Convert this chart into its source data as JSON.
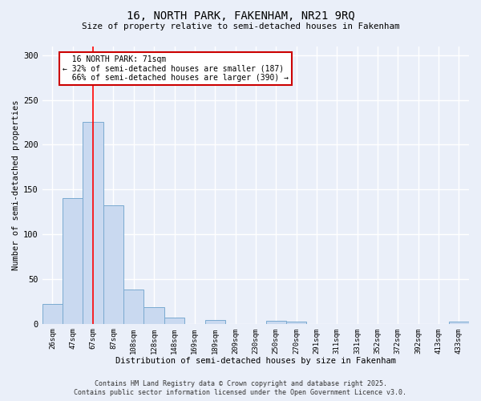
{
  "title": "16, NORTH PARK, FAKENHAM, NR21 9RQ",
  "subtitle": "Size of property relative to semi-detached houses in Fakenham",
  "xlabel": "Distribution of semi-detached houses by size in Fakenham",
  "ylabel": "Number of semi-detached properties",
  "bar_labels": [
    "26sqm",
    "47sqm",
    "67sqm",
    "87sqm",
    "108sqm",
    "128sqm",
    "148sqm",
    "169sqm",
    "189sqm",
    "209sqm",
    "230sqm",
    "250sqm",
    "270sqm",
    "291sqm",
    "311sqm",
    "331sqm",
    "352sqm",
    "372sqm",
    "392sqm",
    "413sqm",
    "433sqm"
  ],
  "bar_values": [
    22,
    140,
    225,
    132,
    38,
    19,
    7,
    0,
    4,
    0,
    0,
    3,
    2,
    0,
    0,
    0,
    0,
    0,
    0,
    0,
    2
  ],
  "bar_color": "#c9d9f0",
  "bar_edge_color": "#7aaad0",
  "ylim": [
    0,
    310
  ],
  "yticks": [
    0,
    50,
    100,
    150,
    200,
    250,
    300
  ],
  "property_label": "16 NORTH PARK: 71sqm",
  "pct_smaller": 32,
  "pct_larger": 66,
  "count_smaller": 187,
  "count_larger": 390,
  "vline_bar_index": 2,
  "annotation_box_color": "#ffffff",
  "annotation_box_edge": "#cc0000",
  "bg_color": "#eaeff9",
  "grid_color": "#ffffff",
  "footer1": "Contains HM Land Registry data © Crown copyright and database right 2025.",
  "footer2": "Contains public sector information licensed under the Open Government Licence v3.0."
}
